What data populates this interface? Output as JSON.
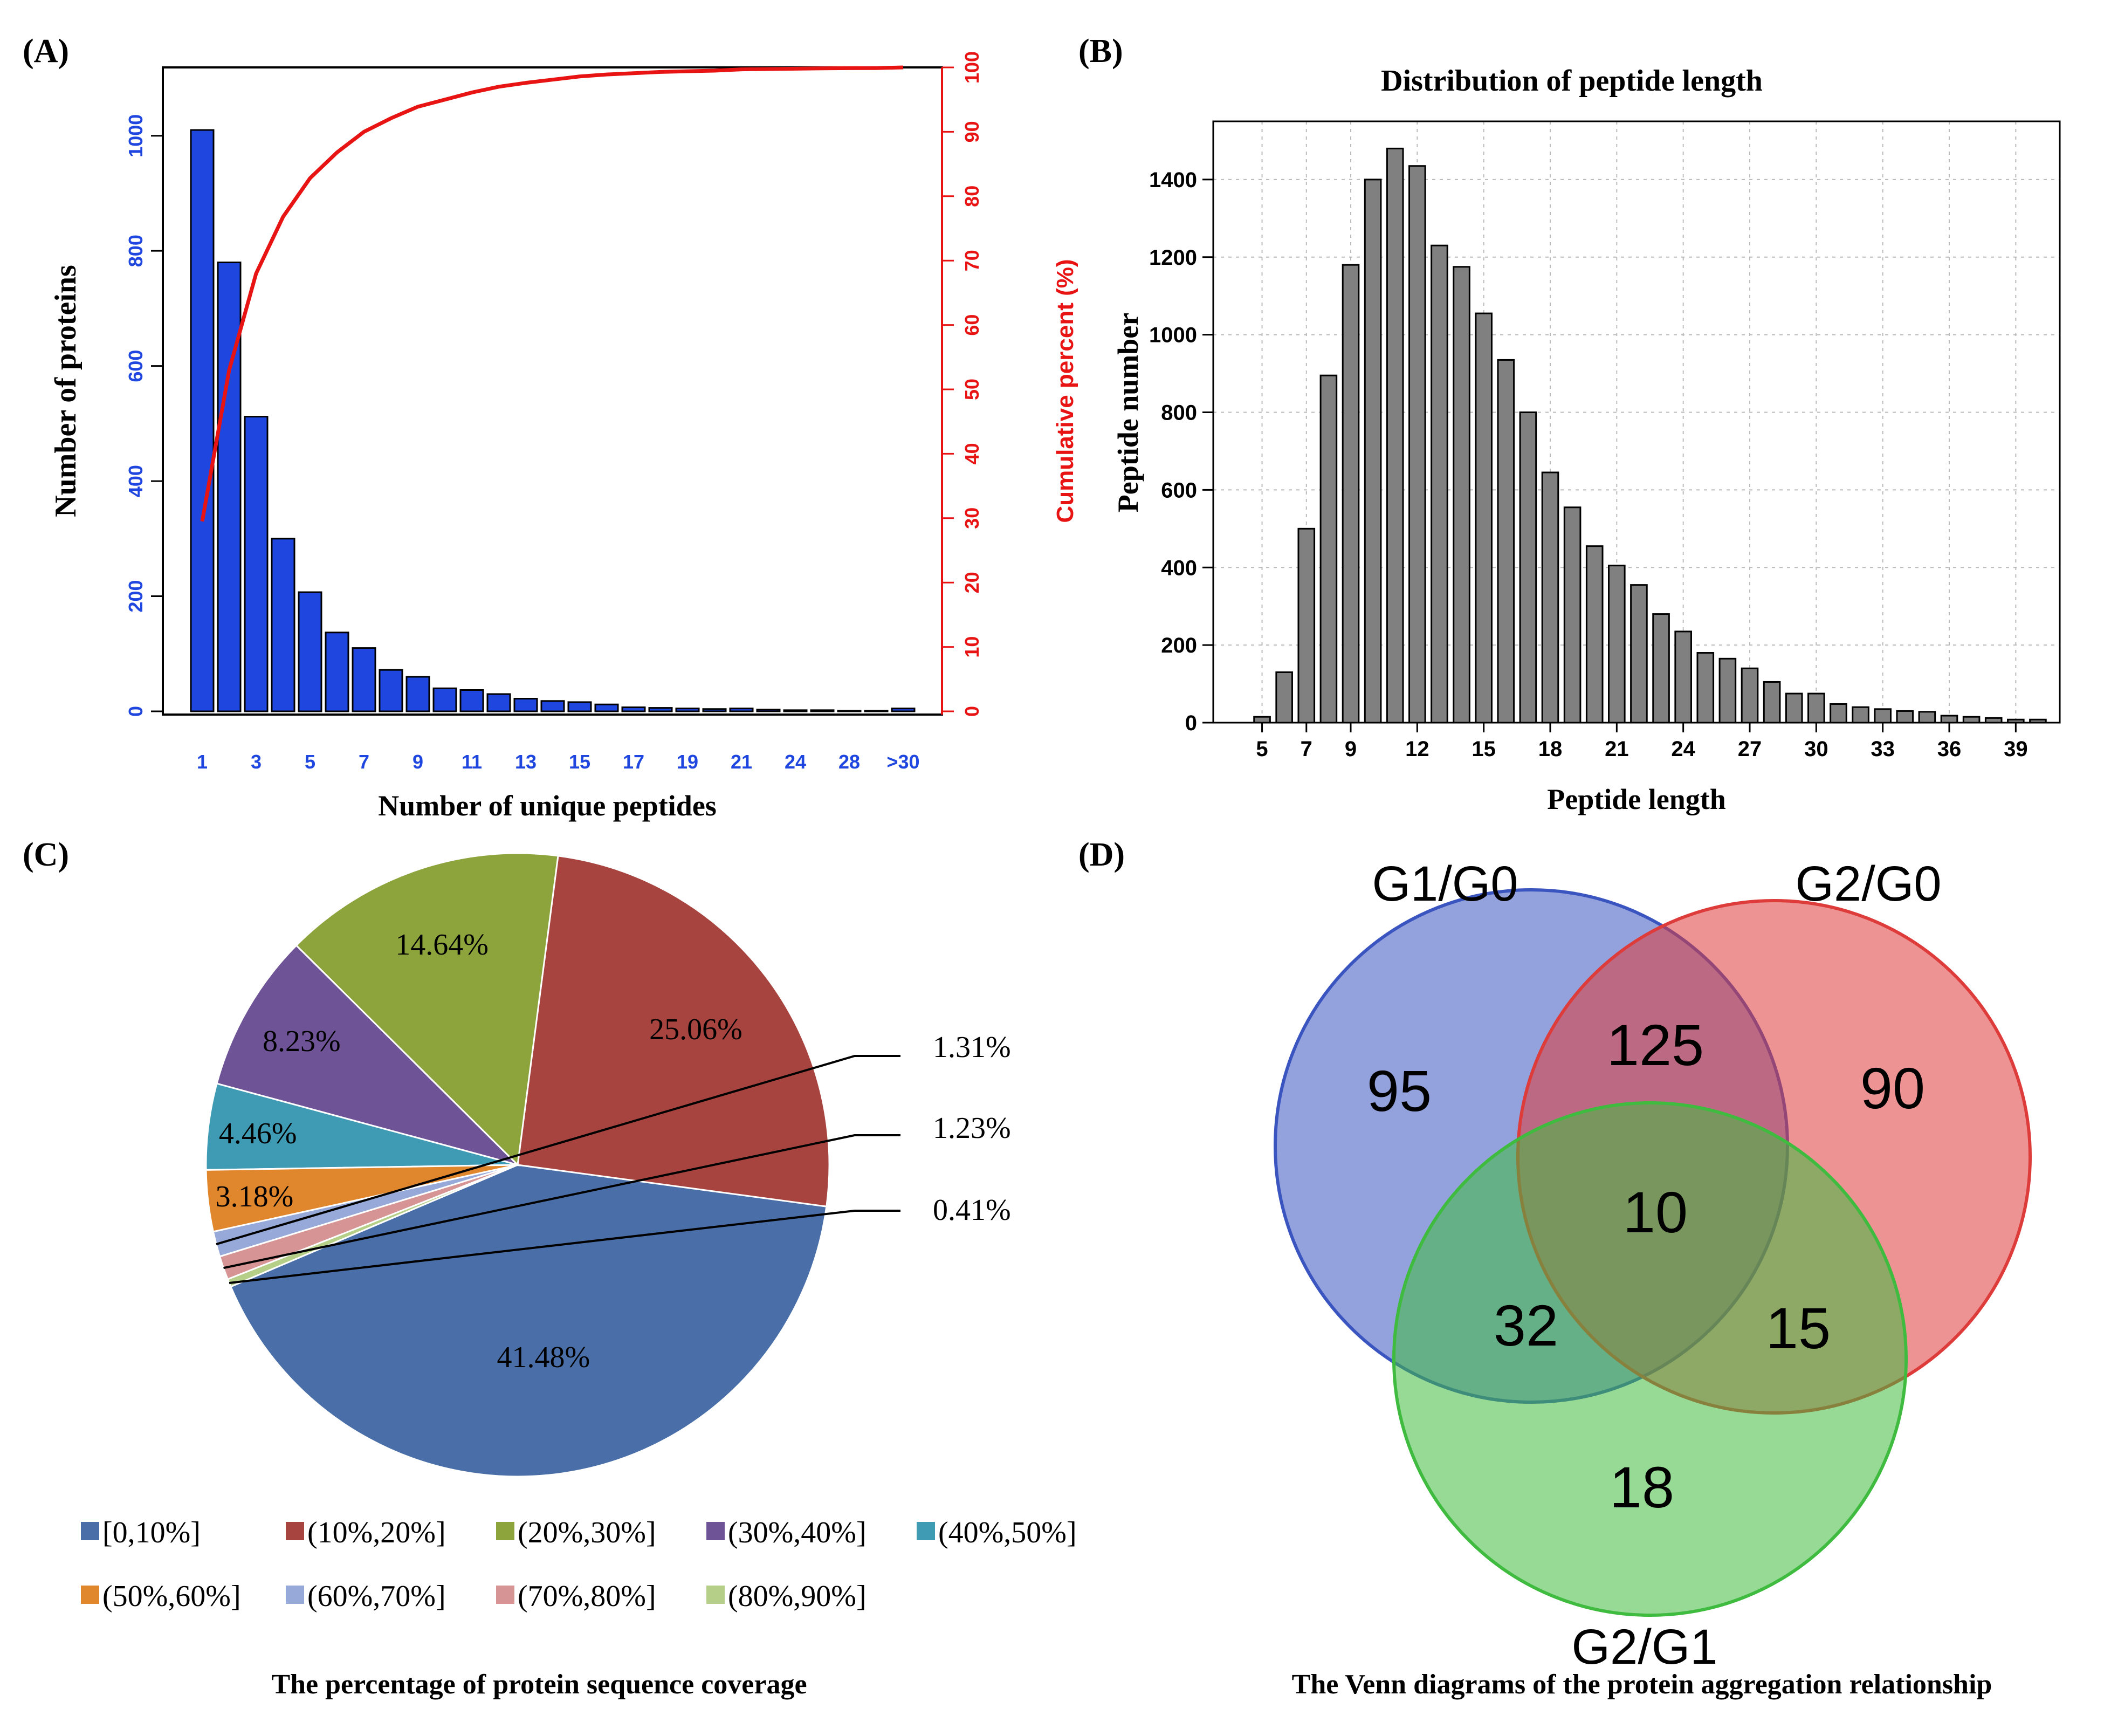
{
  "colors": {
    "blue_bar": "#1f47e0",
    "red_line": "#e81414",
    "blue_tick": "#1f47e0",
    "gray_bar": "#808080",
    "venn_g1": "#3b55c0",
    "venn_g2": "#de3b3b",
    "venn_g3": "#3fbb3f"
  },
  "chart_data": [
    {
      "panel": "(A)",
      "type": "bar",
      "title": "",
      "xlabel": "Number of unique peptides",
      "ylabel": "Number of proteins",
      "y2label": "Cumulative percent (%)",
      "categories": [
        "1",
        "2",
        "3",
        "4",
        "5",
        "6",
        "7",
        "8",
        "9",
        "10",
        "11",
        "12",
        "13",
        "14",
        "15",
        "16",
        "17",
        "18",
        "19",
        "20",
        "21",
        "22",
        "24",
        "26",
        "28",
        "29",
        ">30"
      ],
      "xtick_labels": [
        "1",
        "3",
        "5",
        "7",
        "9",
        "11",
        "13",
        "15",
        "17",
        "19",
        "21",
        "24",
        "28",
        ">30"
      ],
      "xtick_indices": [
        0,
        2,
        4,
        6,
        8,
        10,
        12,
        14,
        16,
        18,
        20,
        22,
        24,
        26
      ],
      "series": [
        {
          "name": "Number of proteins",
          "axis": "left",
          "values": [
            1010,
            780,
            512,
            300,
            207,
            137,
            110,
            72,
            60,
            40,
            37,
            30,
            22,
            18,
            16,
            12,
            7,
            6,
            5,
            4,
            5,
            3,
            2,
            2,
            1,
            1,
            5
          ]
        },
        {
          "name": "Cumulative percent (%)",
          "axis": "right",
          "type": "line",
          "values": [
            29.5,
            53.0,
            68.0,
            76.8,
            82.8,
            86.8,
            90.0,
            92.1,
            93.9,
            95.0,
            96.1,
            97.0,
            97.6,
            98.1,
            98.6,
            98.9,
            99.1,
            99.3,
            99.4,
            99.5,
            99.7,
            99.75,
            99.8,
            99.85,
            99.88,
            99.9,
            100
          ]
        }
      ],
      "ylim": [
        0,
        1100
      ],
      "yticks": [
        0,
        200,
        400,
        600,
        800,
        1000
      ],
      "y2lim": [
        0,
        100
      ],
      "y2ticks": [
        0,
        10,
        20,
        30,
        40,
        50,
        60,
        70,
        80,
        90,
        100
      ]
    },
    {
      "panel": "(B)",
      "type": "bar",
      "title": "Distribution of peptide length",
      "xlabel": "Peptide length",
      "ylabel": "Peptide number",
      "categories": [
        "5",
        "6",
        "7",
        "8",
        "9",
        "10",
        "11",
        "12",
        "13",
        "14",
        "15",
        "16",
        "17",
        "18",
        "19",
        "20",
        "21",
        "22",
        "23",
        "24",
        "25",
        "26",
        "27",
        "28",
        "29",
        "30",
        "31",
        "32",
        "33",
        "34",
        "35",
        "36",
        "37",
        "38",
        "39",
        "40"
      ],
      "xtick_labels": [
        "5",
        "7",
        "9",
        "12",
        "15",
        "18",
        "21",
        "24",
        "27",
        "30",
        "33",
        "36",
        "39"
      ],
      "xtick_indices": [
        0,
        2,
        4,
        7,
        10,
        13,
        16,
        19,
        22,
        25,
        28,
        31,
        34
      ],
      "values": [
        15,
        130,
        500,
        895,
        1180,
        1400,
        1480,
        1435,
        1230,
        1175,
        1055,
        935,
        800,
        645,
        555,
        455,
        405,
        355,
        280,
        235,
        180,
        165,
        140,
        105,
        75,
        75,
        48,
        40,
        35,
        30,
        28,
        18,
        15,
        12,
        8,
        8
      ],
      "ylim": [
        0,
        1550
      ],
      "yticks": [
        0,
        200,
        400,
        600,
        800,
        1000,
        1200,
        1400
      ],
      "grid": true
    },
    {
      "panel": "(C)",
      "type": "pie",
      "title": "The percentage of protein sequence coverage",
      "labels": [
        "[0,10%]",
        "(10%,20%]",
        "(20%,30%]",
        "(30%,40%]",
        "(40%,50%]",
        "(50%,60%]",
        "(60%,70%]",
        "(70%,80%]",
        "(80%,90%]"
      ],
      "values": [
        41.48,
        25.06,
        14.64,
        8.23,
        4.46,
        3.18,
        1.31,
        1.23,
        0.41
      ],
      "value_labels": [
        "41.48%",
        "25.06%",
        "14.64%",
        "8.23%",
        "4.46%",
        "3.18%",
        "1.31%",
        "1.23%",
        "0.41%"
      ],
      "colors": [
        "#4a6fa8",
        "#a8443f",
        "#8da43c",
        "#6e5397",
        "#3f9bb4",
        "#e0862c",
        "#96a9d9",
        "#d69594",
        "#b6cf88"
      ],
      "legend": "bottom"
    },
    {
      "panel": "(D)",
      "type": "venn",
      "title": "The Venn diagrams of the protein aggregation relationship",
      "sets": [
        "G1/G0",
        "G2/G0",
        "G2/G1"
      ],
      "regions": {
        "only_g1": "95",
        "only_g2": "90",
        "only_g3": "18",
        "g1_g2": "125",
        "g1_g3": "32",
        "g2_g3": "15",
        "all": "10"
      }
    }
  ]
}
